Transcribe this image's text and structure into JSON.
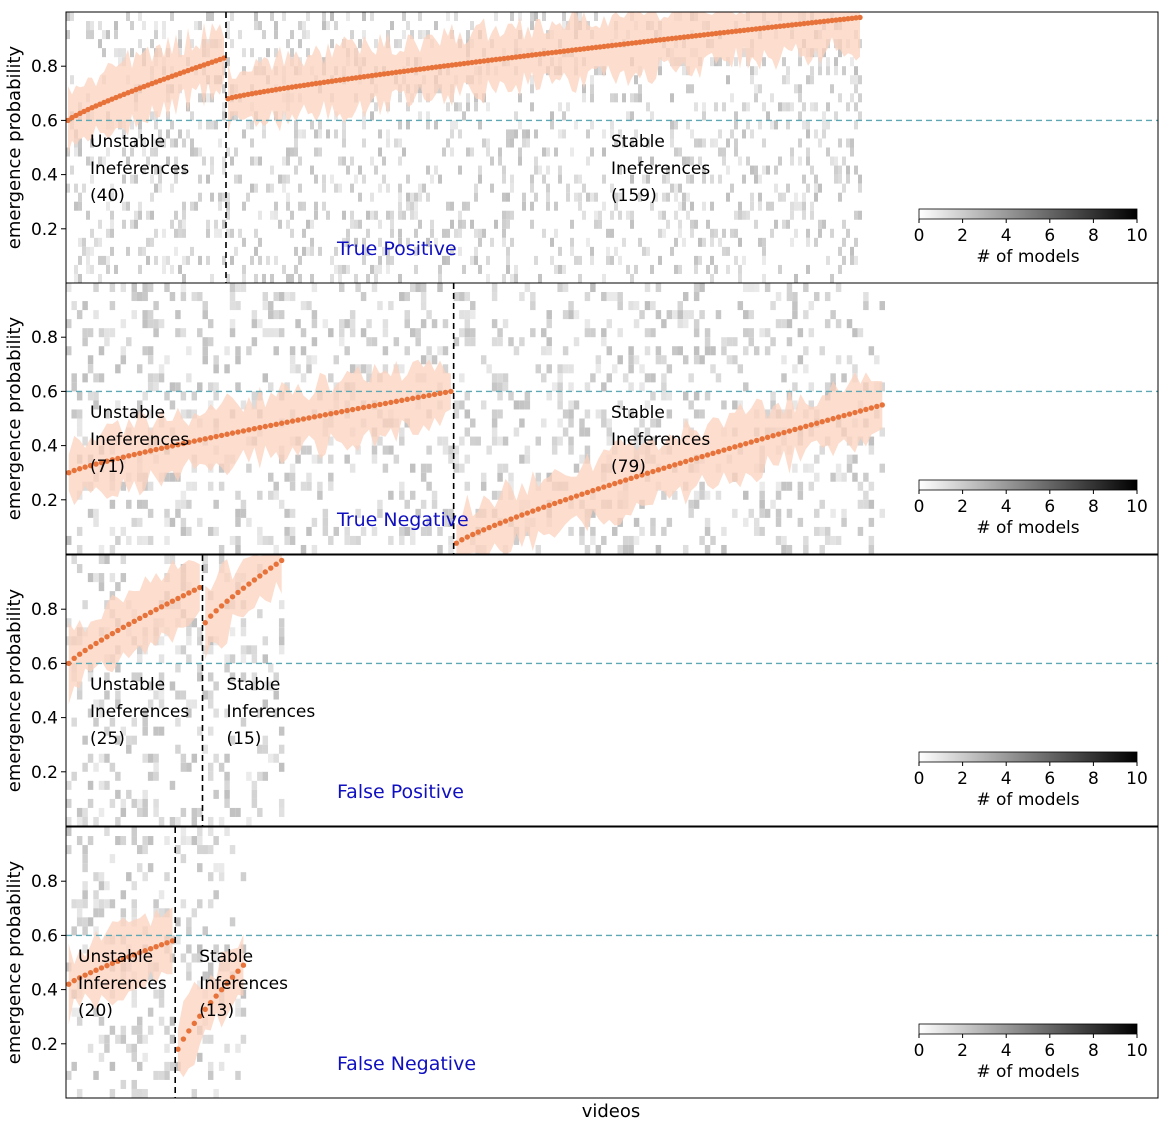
{
  "xlabel": "videos",
  "ylabel": "emergence probability",
  "colorbar": {
    "label": "# of models",
    "ticks": [
      "0",
      "2",
      "4",
      "6",
      "8",
      "10"
    ],
    "range": [
      0,
      10
    ]
  },
  "colors": {
    "points": "#e8733a",
    "band": "#fbd2bd",
    "threshold": "#5fa8b3",
    "divider": "#000000",
    "title": "#1010c0"
  },
  "chart_data": [
    {
      "type": "scatter",
      "title": "True Positive",
      "ylim": [
        0,
        1
      ],
      "yticks": [
        0.2,
        0.4,
        0.6,
        0.8
      ],
      "threshold": 0.6,
      "xlim": [
        0,
        273
      ],
      "split": 40,
      "groups": [
        {
          "label": [
            "Unstable",
            "Ineferences",
            "(40)"
          ],
          "count": 40,
          "y_start": 0.6,
          "y_end": 0.83
        },
        {
          "label": [
            "Stable",
            "Ineferences",
            "(159)"
          ],
          "count": 159,
          "y_start": 0.68,
          "y_end": 0.98
        }
      ]
    },
    {
      "type": "scatter",
      "title": "True Negative",
      "ylim": [
        0,
        1
      ],
      "yticks": [
        0.2,
        0.4,
        0.6,
        0.8
      ],
      "threshold": 0.6,
      "xlim": [
        0,
        200
      ],
      "split": 71,
      "groups": [
        {
          "label": [
            "Unstable",
            "Ineferences",
            "(71)"
          ],
          "count": 71,
          "y_start": 0.3,
          "y_end": 0.6
        },
        {
          "label": [
            "Stable",
            "Ineferences",
            "(79)"
          ],
          "count": 79,
          "y_start": 0.04,
          "y_end": 0.55
        }
      ]
    },
    {
      "type": "scatter",
      "title": "False Positive",
      "ylim": [
        0,
        1
      ],
      "yticks": [
        0.2,
        0.4,
        0.6,
        0.8
      ],
      "threshold": 0.6,
      "xlim": [
        0,
        200
      ],
      "split": 25,
      "groups": [
        {
          "label": [
            "Unstable",
            "Ineferences",
            "(25)"
          ],
          "count": 25,
          "y_start": 0.6,
          "y_end": 0.88
        },
        {
          "label": [
            "Stable",
            "Inferences",
            "(15)"
          ],
          "count": 15,
          "y_start": 0.75,
          "y_end": 0.98
        }
      ]
    },
    {
      "type": "scatter",
      "title": "False Negative",
      "ylim": [
        0,
        1
      ],
      "yticks": [
        0.2,
        0.4,
        0.6,
        0.8
      ],
      "threshold": 0.6,
      "xlim": [
        0,
        200
      ],
      "split": 20,
      "groups": [
        {
          "label": [
            "Unstable",
            "Inferences",
            "(20)"
          ],
          "count": 20,
          "y_start": 0.42,
          "y_end": 0.58
        },
        {
          "label": [
            "Stable",
            "Inferences",
            "(13)"
          ],
          "count": 13,
          "y_start": 0.18,
          "y_end": 0.49
        }
      ]
    }
  ]
}
